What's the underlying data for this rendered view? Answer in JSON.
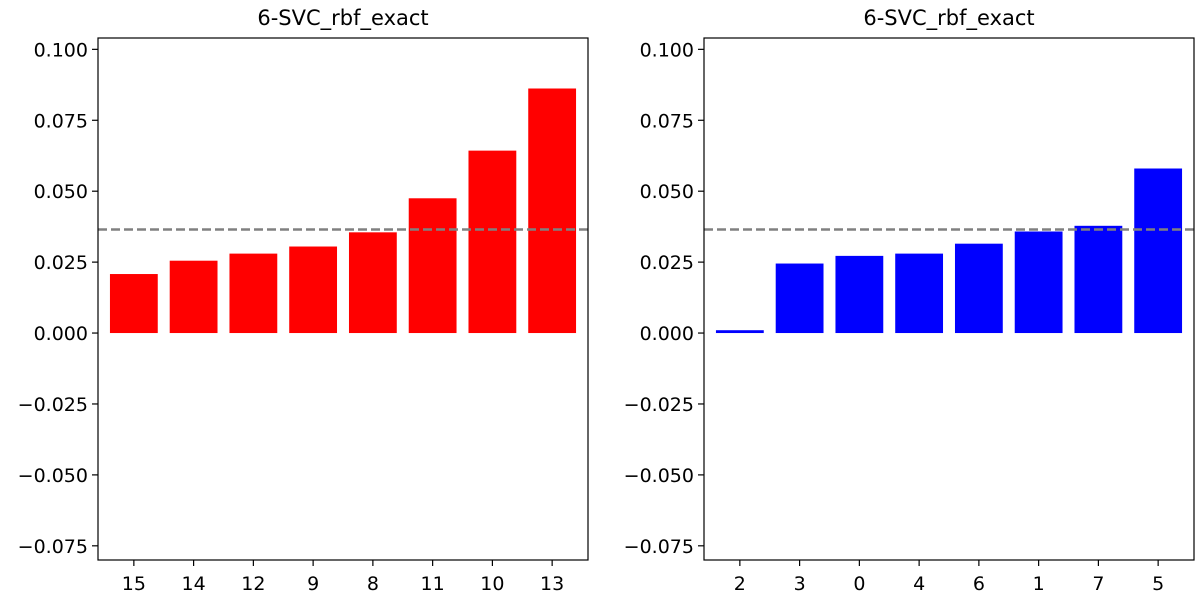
{
  "chart_data": [
    {
      "type": "bar",
      "title": "6-SVC_rbf_exact",
      "xlabel": "",
      "ylabel": "",
      "categories": [
        "15",
        "14",
        "12",
        "9",
        "8",
        "11",
        "10",
        "13"
      ],
      "values": [
        0.0208,
        0.0255,
        0.028,
        0.0305,
        0.0355,
        0.0475,
        0.0643,
        0.0862
      ],
      "bar_color": "#ff0000",
      "reference_line": 0.0365,
      "reference_color": "#808080",
      "ylim": [
        -0.08,
        0.104
      ],
      "yticks": [
        -0.075,
        -0.05,
        -0.025,
        0.0,
        0.025,
        0.05,
        0.075,
        0.1
      ],
      "ytick_labels": [
        "−0.075",
        "−0.050",
        "−0.025",
        "0.000",
        "0.025",
        "0.050",
        "0.075",
        "0.100"
      ],
      "grid": false
    },
    {
      "type": "bar",
      "title": "6-SVC_rbf_exact",
      "xlabel": "",
      "ylabel": "",
      "categories": [
        "2",
        "3",
        "0",
        "4",
        "6",
        "1",
        "7",
        "5"
      ],
      "values": [
        0.001,
        0.0245,
        0.0272,
        0.028,
        0.0315,
        0.0358,
        0.0378,
        0.058
      ],
      "bar_color": "#0000ff",
      "reference_line": 0.0365,
      "reference_color": "#808080",
      "ylim": [
        -0.08,
        0.104
      ],
      "yticks": [
        -0.075,
        -0.05,
        -0.025,
        0.0,
        0.025,
        0.05,
        0.075,
        0.1
      ],
      "ytick_labels": [
        "−0.075",
        "−0.050",
        "−0.025",
        "0.000",
        "0.025",
        "0.050",
        "0.075",
        "0.100"
      ],
      "grid": false
    }
  ]
}
